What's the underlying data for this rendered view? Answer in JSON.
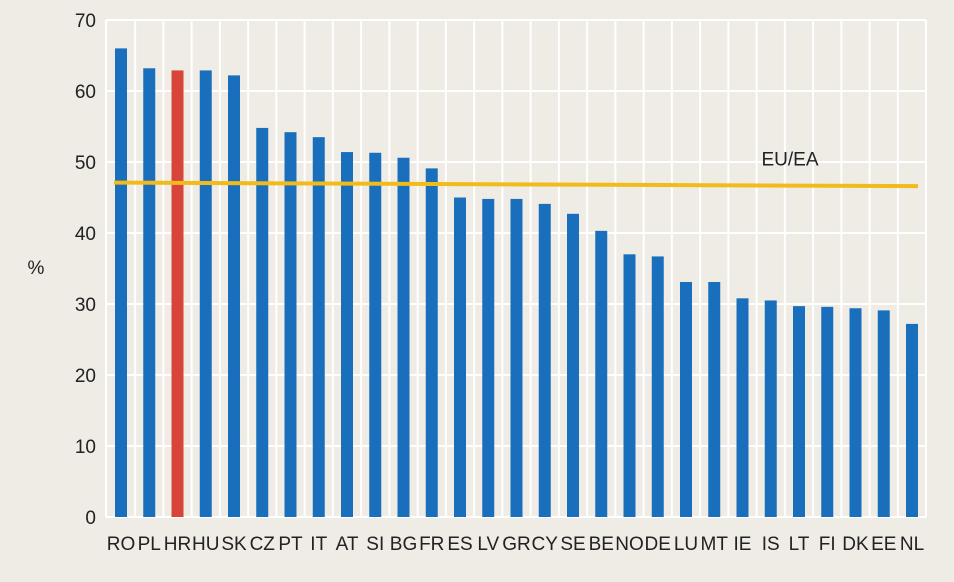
{
  "chart_data": {
    "type": "bar",
    "title": "",
    "xlabel": "",
    "ylabel": "%",
    "ylim": [
      0,
      70
    ],
    "yticks": [
      0,
      10,
      20,
      30,
      40,
      50,
      60,
      70
    ],
    "grid": "on",
    "categories": [
      "RO",
      "PL",
      "HR",
      "HU",
      "SK",
      "CZ",
      "PT",
      "IT",
      "AT",
      "SI",
      "BG",
      "FR",
      "ES",
      "LV",
      "GR",
      "CY",
      "SE",
      "BE",
      "NO",
      "DE",
      "LU",
      "MT",
      "IE",
      "IS",
      "LT",
      "FI",
      "DK",
      "EE",
      "NL"
    ],
    "values": [
      66,
      63.2,
      62.9,
      62.9,
      62.2,
      54.8,
      54.2,
      53.5,
      51.4,
      51.3,
      50.6,
      49.1,
      45,
      44.8,
      44.8,
      44.1,
      42.7,
      40.3,
      37,
      36.7,
      33.1,
      33.1,
      30.8,
      30.5,
      29.7,
      29.6,
      29.4,
      29.1,
      27.2
    ],
    "highlight_category": "HR",
    "colors": {
      "bar": "#1a6fbd",
      "highlight": "#d6443a",
      "reference_line": "#f2bb1a",
      "grid": "#ffffff",
      "background": "#efebe5"
    },
    "reference_line": {
      "label": "EU/EA",
      "start_value": 47.1,
      "end_value": 46.6
    }
  }
}
